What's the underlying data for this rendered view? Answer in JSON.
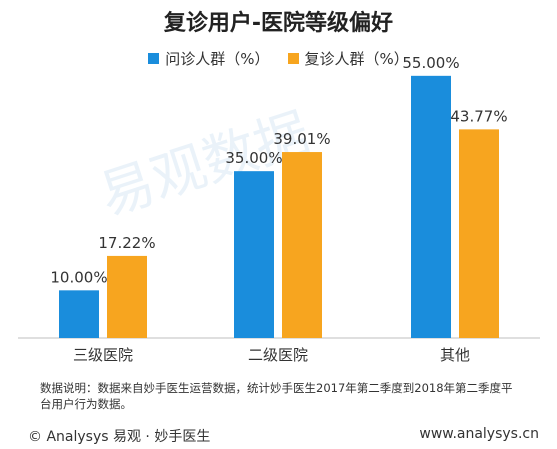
{
  "page": {
    "note": "数据说明：数据来自妙手医生运营数据，统计妙手医生2017年第二季度到2018年第二季度平台用户行为数据。",
    "footer_left": "© Analysys 易观 · 妙手医生",
    "footer_right": "www.analysys.cn",
    "watermark": "易观数据"
  },
  "chart_data": {
    "type": "bar",
    "title": "复诊用户-医院等级偏好",
    "categories": [
      "三级医院",
      "二级医院",
      "其他"
    ],
    "series": [
      {
        "name": "问诊人群（%）",
        "color": "#1a8ddc",
        "values": [
          10.0,
          35.0,
          55.0
        ],
        "labels": [
          "10.00%",
          "35.00%",
          "55.00%"
        ]
      },
      {
        "name": "复诊人群（%）",
        "color": "#f7a51f",
        "values": [
          17.22,
          39.01,
          43.77
        ],
        "labels": [
          "17.22%",
          "39.01%",
          "43.77%"
        ]
      }
    ],
    "ylim": [
      0,
      60
    ],
    "grid": false,
    "legend_position": "top"
  }
}
